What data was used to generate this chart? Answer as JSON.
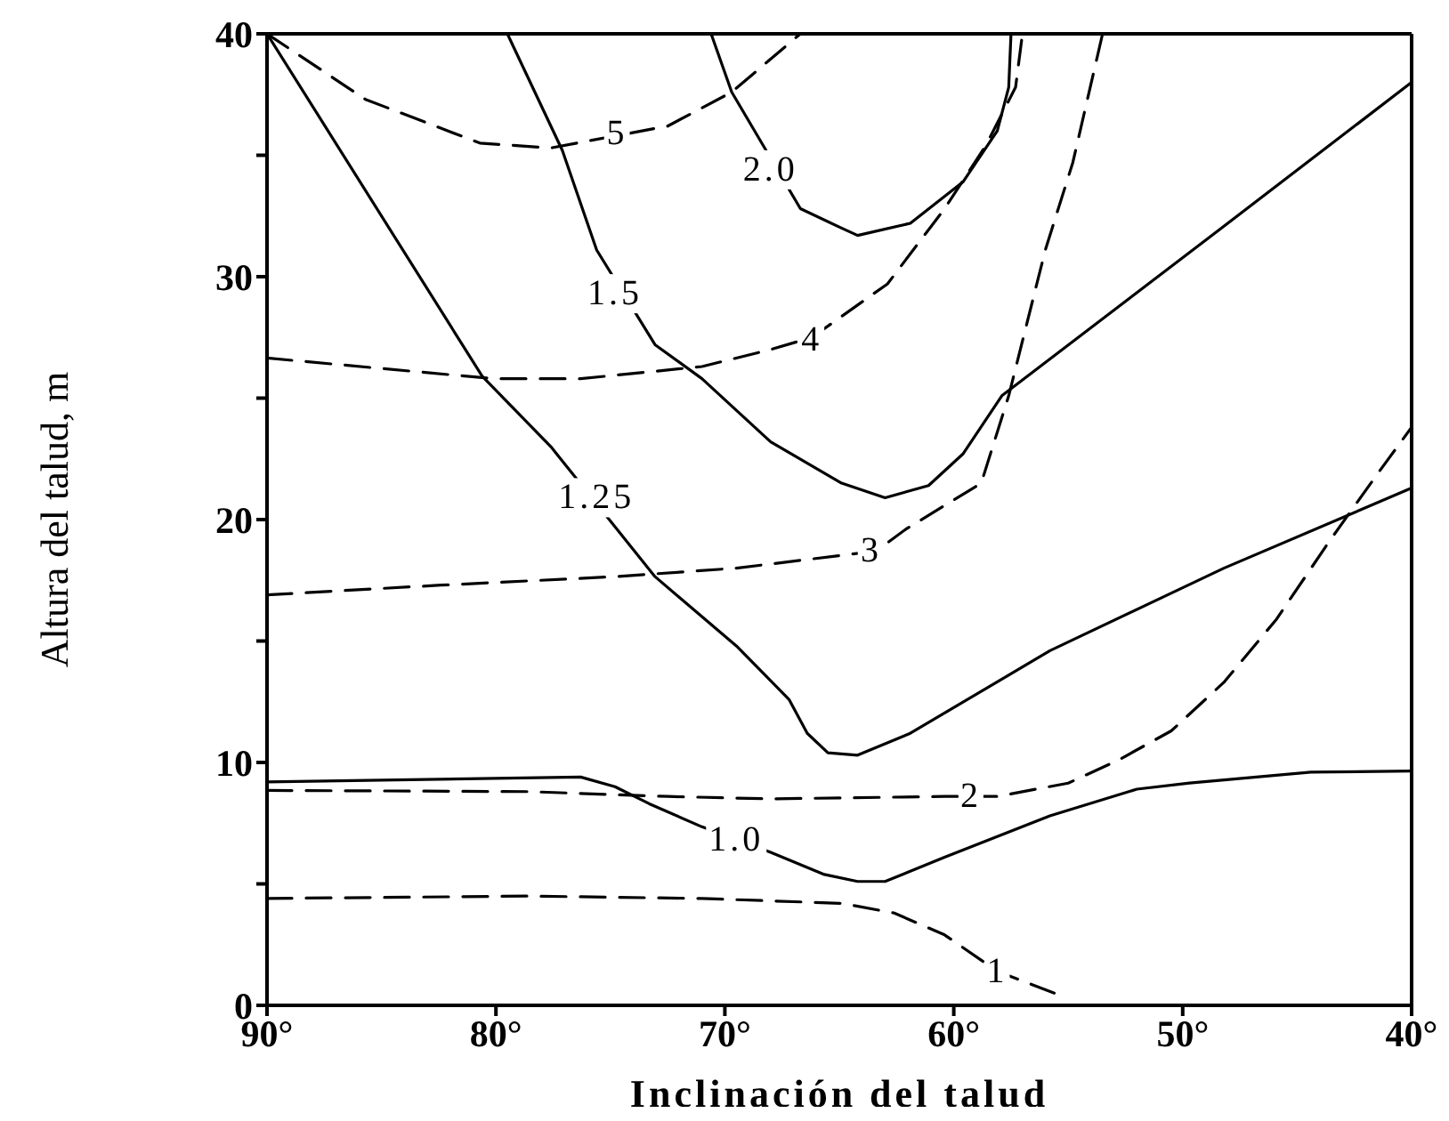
{
  "chart_data": {
    "type": "line",
    "xlabel": "Inclinación del talud",
    "ylabel": "Altura del talud, m",
    "xlim": [
      90,
      40
    ],
    "xticks": [
      {
        "value": 90,
        "label": "90°"
      },
      {
        "value": 80,
        "label": "80°"
      },
      {
        "value": 70,
        "label": "70°"
      },
      {
        "value": 60,
        "label": "60°"
      },
      {
        "value": 50,
        "label": "50°"
      },
      {
        "value": 40,
        "label": "40°"
      }
    ],
    "ylim": [
      0,
      40
    ],
    "yticks": [
      0,
      {
        "value": 5,
        "label": null
      },
      10,
      {
        "value": 15,
        "label": null
      },
      20,
      {
        "value": 25,
        "label": null
      },
      30,
      {
        "value": 35,
        "label": null
      },
      40
    ],
    "legend": false,
    "marker": "none",
    "series": [
      {
        "color": "#000000",
        "line_style": "solid",
        "x": [
          90,
          80.6,
          77.6,
          73.05,
          69.5,
          67.2,
          66.4,
          65.5,
          64.2,
          61.9,
          55.8,
          48.2,
          40
        ],
        "values": [
          40,
          25.9,
          23,
          17.65,
          14.8,
          12.6,
          11.2,
          10.4,
          10.3,
          11.2,
          14.6,
          18,
          21.3
        ]
      },
      {
        "color": "#000000",
        "line_style": "solid",
        "x": [
          79.5,
          77.1,
          75.6,
          73.05,
          71,
          68,
          64.9,
          63,
          61.1,
          59.6,
          57.9,
          49,
          40
        ],
        "values": [
          40,
          35.2,
          31.1,
          27.2,
          25.8,
          23.2,
          21.5,
          20.9,
          21.4,
          22.7,
          25.1,
          31.5,
          38
        ]
      },
      {
        "color": "#000000",
        "line_style": "solid",
        "x": [
          70.6,
          69.7,
          66.7,
          64.9,
          64.2,
          61.9,
          59.6,
          58.1,
          57.6,
          57.5
        ],
        "values": [
          40,
          37.6,
          32.8,
          32,
          31.7,
          32.2,
          33.9,
          36,
          37.8,
          40
        ]
      },
      {
        "color": "#000000",
        "line_style": "solid",
        "x": [
          90,
          76.3,
          74.8,
          73.3,
          71,
          68,
          65.7,
          64.2,
          63,
          60.4,
          55.8,
          52,
          49.7,
          44.4,
          40
        ],
        "values": [
          9.2,
          9.4,
          9,
          8.3,
          7.35,
          6.3,
          5.4,
          5.1,
          5.1,
          6.1,
          7.8,
          8.9,
          9.15,
          9.6,
          9.65
        ]
      },
      {
        "color": "#000000",
        "line_style": "dashed",
        "x": [
          90,
          78.6,
          71,
          64.9,
          62.6,
          60.4,
          58.1,
          55.6,
          55.4
        ],
        "values": [
          4.4,
          4.5,
          4.4,
          4.2,
          3.8,
          2.9,
          1.4,
          0.5,
          0
        ]
      },
      {
        "color": "#000000",
        "line_style": "dashed",
        "x": [
          90,
          78.6,
          72.5,
          68,
          60.4,
          58.1,
          55,
          52.8,
          50.5,
          48.2,
          45.9,
          43.6,
          41.4,
          40
        ],
        "values": [
          8.85,
          8.8,
          8.6,
          8.5,
          8.6,
          8.6,
          9.15,
          10.1,
          11.3,
          13.3,
          15.9,
          19.1,
          22,
          23.8
        ]
      },
      {
        "color": "#000000",
        "line_style": "dashed",
        "x": [
          90,
          82.4,
          74.8,
          69.5,
          63.4,
          62.1,
          58.8,
          57.6,
          56,
          54.8,
          53.5
        ],
        "values": [
          16.9,
          17.3,
          17.65,
          18,
          18.7,
          19.6,
          21.5,
          25.1,
          31.1,
          34.7,
          40
        ]
      },
      {
        "color": "#000000",
        "line_style": "dashed",
        "x": [
          90,
          80.1,
          76.3,
          71,
          68,
          66.2,
          62.9,
          60.4,
          58.6,
          57.3,
          57
        ],
        "values": [
          26.65,
          25.8,
          25.8,
          26.3,
          27,
          27.5,
          29.7,
          32.8,
          35.4,
          37.8,
          40
        ]
      },
      {
        "color": "#000000",
        "line_style": "dashed",
        "x": [
          90,
          85.7,
          80.7,
          77.6,
          72.5,
          69.7,
          66.7
        ],
        "values": [
          40,
          37.3,
          35.5,
          35.3,
          36.2,
          37.6,
          40
        ]
      }
    ],
    "annotations": [
      {
        "text": "5",
        "x": 74.7,
        "y": 35.9
      },
      {
        "text": "2.0",
        "x": 68,
        "y": 34.4
      },
      {
        "text": "1.5",
        "x": 74.8,
        "y": 29.3
      },
      {
        "text": "4",
        "x": 66.2,
        "y": 27.4
      },
      {
        "text": "1.25",
        "x": 75.6,
        "y": 20.9
      },
      {
        "text": "3",
        "x": 63.6,
        "y": 18.7
      },
      {
        "text": "2",
        "x": 59.25,
        "y": 8.6
      },
      {
        "text": "1.0",
        "x": 69.5,
        "y": 6.8
      },
      {
        "text": "1",
        "x": 58.1,
        "y": 1.4
      }
    ]
  }
}
